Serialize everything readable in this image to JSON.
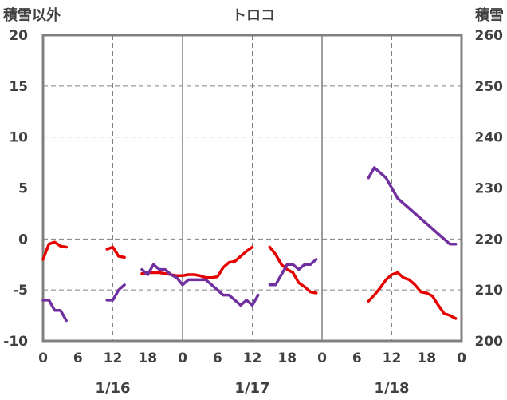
{
  "chart_data": {
    "type": "line",
    "title": "トロコ",
    "y_left_label": "積雪以外",
    "y_right_label": "積雪",
    "y_left_range": [
      -10,
      20
    ],
    "y_left_ticks": [
      "20",
      "15",
      "10",
      "5",
      "0",
      "-5",
      "-10"
    ],
    "y_right_range": [
      200,
      260
    ],
    "y_right_ticks": [
      "260",
      "250",
      "240",
      "230",
      "220",
      "210",
      "200"
    ],
    "x_range_hours": [
      0,
      72
    ],
    "x_tick_labels": [
      "0",
      "6",
      "12",
      "18",
      "0",
      "6",
      "12",
      "18",
      "0",
      "6",
      "12",
      "18",
      "0"
    ],
    "date_labels": [
      {
        "text": "1/16",
        "hour": 12
      },
      {
        "text": "1/17",
        "hour": 36
      },
      {
        "text": "1/18",
        "hour": 60
      }
    ],
    "grid": "dashed verticals at 12h, solid verticals at day boundaries, dashed horizontals",
    "series": [
      {
        "axis": "left",
        "color": "#e60000",
        "segments": [
          [
            [
              0,
              -2.0
            ],
            [
              1,
              -0.5
            ],
            [
              2,
              -0.3
            ],
            [
              3,
              -0.7
            ],
            [
              4,
              -0.8
            ]
          ],
          [
            [
              11,
              -1.0
            ],
            [
              12,
              -0.8
            ],
            [
              13,
              -1.7
            ],
            [
              14,
              -1.8
            ]
          ],
          [
            [
              17,
              -3.4
            ],
            [
              18,
              -3.3
            ],
            [
              19,
              -3.3
            ],
            [
              20,
              -3.3
            ],
            [
              21,
              -3.4
            ],
            [
              22,
              -3.5
            ],
            [
              23,
              -3.6
            ],
            [
              24,
              -3.6
            ],
            [
              25,
              -3.5
            ],
            [
              26,
              -3.5
            ],
            [
              27,
              -3.6
            ],
            [
              28,
              -3.8
            ],
            [
              29,
              -3.8
            ],
            [
              30,
              -3.7
            ],
            [
              31,
              -2.8
            ],
            [
              32,
              -2.3
            ],
            [
              33,
              -2.2
            ],
            [
              34,
              -1.7
            ],
            [
              35,
              -1.2
            ],
            [
              36,
              -0.8
            ]
          ],
          [
            [
              39,
              -0.8
            ],
            [
              40,
              -1.5
            ],
            [
              41,
              -2.5
            ],
            [
              42,
              -3.0
            ],
            [
              43,
              -3.3
            ],
            [
              44,
              -4.3
            ],
            [
              45,
              -4.7
            ],
            [
              46,
              -5.2
            ],
            [
              47,
              -5.3
            ]
          ],
          [
            [
              56,
              -6.1
            ],
            [
              57,
              -5.5
            ],
            [
              58,
              -4.8
            ],
            [
              59,
              -4.0
            ],
            [
              60,
              -3.5
            ],
            [
              61,
              -3.3
            ],
            [
              62,
              -3.8
            ],
            [
              63,
              -4.0
            ],
            [
              64,
              -4.5
            ],
            [
              65,
              -5.2
            ],
            [
              66,
              -5.3
            ],
            [
              67,
              -5.6
            ],
            [
              68,
              -6.5
            ],
            [
              69,
              -7.3
            ],
            [
              70,
              -7.5
            ],
            [
              71,
              -7.8
            ]
          ]
        ]
      },
      {
        "axis": "left",
        "color": "#7030a0",
        "segments": [
          [
            [
              0,
              -6.0
            ],
            [
              1,
              -6.0
            ],
            [
              2,
              -7.0
            ],
            [
              3,
              -7.0
            ],
            [
              4,
              -8.0
            ]
          ],
          [
            [
              11,
              -6.0
            ],
            [
              12,
              -6.0
            ],
            [
              13,
              -5.0
            ],
            [
              14,
              -4.5
            ]
          ],
          [
            [
              17,
              -3.0
            ],
            [
              18,
              -3.5
            ],
            [
              19,
              -2.5
            ],
            [
              20,
              -3.0
            ],
            [
              21,
              -3.0
            ],
            [
              22,
              -3.5
            ],
            [
              23,
              -3.8
            ],
            [
              24,
              -4.5
            ],
            [
              25,
              -4.0
            ],
            [
              26,
              -4.0
            ],
            [
              27,
              -4.0
            ],
            [
              28,
              -4.0
            ],
            [
              29,
              -4.5
            ],
            [
              30,
              -5.0
            ],
            [
              31,
              -5.5
            ],
            [
              32,
              -5.5
            ],
            [
              33,
              -6.0
            ],
            [
              34,
              -6.5
            ],
            [
              35,
              -6.0
            ],
            [
              36,
              -6.5
            ],
            [
              37,
              -5.5
            ]
          ],
          [
            [
              39,
              -4.5
            ],
            [
              40,
              -4.5
            ],
            [
              41,
              -3.5
            ],
            [
              42,
              -2.5
            ],
            [
              43,
              -2.5
            ],
            [
              44,
              -3.0
            ],
            [
              45,
              -2.5
            ],
            [
              46,
              -2.5
            ],
            [
              47,
              -2.0
            ]
          ]
        ]
      },
      {
        "axis": "right",
        "color": "#7030a0",
        "segments": [
          [
            [
              56,
              232
            ],
            [
              57,
              234
            ],
            [
              58,
              233
            ],
            [
              59,
              232
            ],
            [
              60,
              230
            ],
            [
              61,
              228
            ],
            [
              62,
              227
            ],
            [
              63,
              226
            ],
            [
              64,
              225
            ],
            [
              65,
              224
            ],
            [
              66,
              223
            ],
            [
              67,
              222
            ],
            [
              68,
              221
            ],
            [
              69,
              220
            ],
            [
              70,
              219
            ],
            [
              71,
              219
            ]
          ]
        ]
      }
    ]
  }
}
